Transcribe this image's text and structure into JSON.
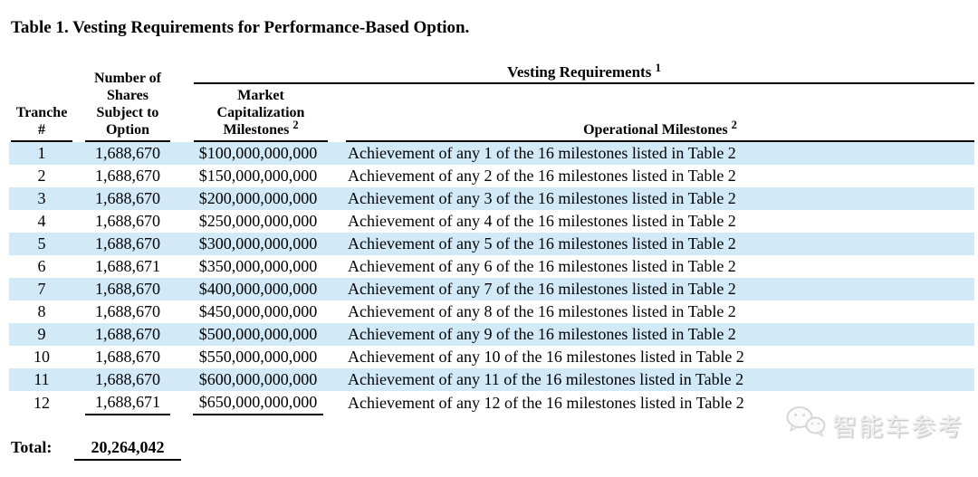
{
  "title": "Table 1. Vesting Requirements for Performance-Based Option.",
  "table": {
    "group_header": {
      "label": "Vesting Requirements",
      "sup": "1"
    },
    "columns": {
      "tranche": "Tranche #",
      "shares": "Number of Shares Subject to Option",
      "market_cap": "Market Capitalization Milestones",
      "market_cap_sup": "2",
      "operational": "Operational Milestones",
      "operational_sup": "2"
    },
    "rows": [
      {
        "tranche": "1",
        "shares": "1,688,670",
        "market_cap": "$100,000,000,000",
        "milestone": "Achievement of any 1 of the 16 milestones listed in Table 2"
      },
      {
        "tranche": "2",
        "shares": "1,688,670",
        "market_cap": "$150,000,000,000",
        "milestone": "Achievement of any 2 of the 16 milestones listed in Table 2"
      },
      {
        "tranche": "3",
        "shares": "1,688,670",
        "market_cap": "$200,000,000,000",
        "milestone": "Achievement of any 3 of the 16 milestones listed in Table 2"
      },
      {
        "tranche": "4",
        "shares": "1,688,670",
        "market_cap": "$250,000,000,000",
        "milestone": "Achievement of any 4 of the 16 milestones listed in Table 2"
      },
      {
        "tranche": "5",
        "shares": "1,688,670",
        "market_cap": "$300,000,000,000",
        "milestone": "Achievement of any 5 of the 16 milestones listed in Table 2"
      },
      {
        "tranche": "6",
        "shares": "1,688,671",
        "market_cap": "$350,000,000,000",
        "milestone": "Achievement of any 6 of the 16 milestones listed in Table 2"
      },
      {
        "tranche": "7",
        "shares": "1,688,670",
        "market_cap": "$400,000,000,000",
        "milestone": "Achievement of any 7 of the 16 milestones listed in Table 2"
      },
      {
        "tranche": "8",
        "shares": "1,688,670",
        "market_cap": "$450,000,000,000",
        "milestone": "Achievement of any 8 of the 16 milestones listed in Table 2"
      },
      {
        "tranche": "9",
        "shares": "1,688,670",
        "market_cap": "$500,000,000,000",
        "milestone": "Achievement of any 9 of the 16 milestones listed in Table 2"
      },
      {
        "tranche": "10",
        "shares": "1,688,670",
        "market_cap": "$550,000,000,000",
        "milestone": "Achievement of any 10 of the 16 milestones listed in Table 2"
      },
      {
        "tranche": "11",
        "shares": "1,688,670",
        "market_cap": "$600,000,000,000",
        "milestone": "Achievement of any 11 of the 16 milestones listed in Table 2"
      },
      {
        "tranche": "12",
        "shares": "1,688,671",
        "market_cap": "$650,000,000,000",
        "milestone": "Achievement of any 12 of the 16 milestones listed in Table 2"
      }
    ],
    "total": {
      "label": "Total:",
      "value": "20,264,042"
    }
  },
  "watermark": {
    "text": "智能车参考",
    "icon": "wechat-chat-bubbles-icon"
  },
  "colors": {
    "row_highlight": "#d2e9f8",
    "text": "#000000",
    "watermark_gray": "#efefef"
  }
}
